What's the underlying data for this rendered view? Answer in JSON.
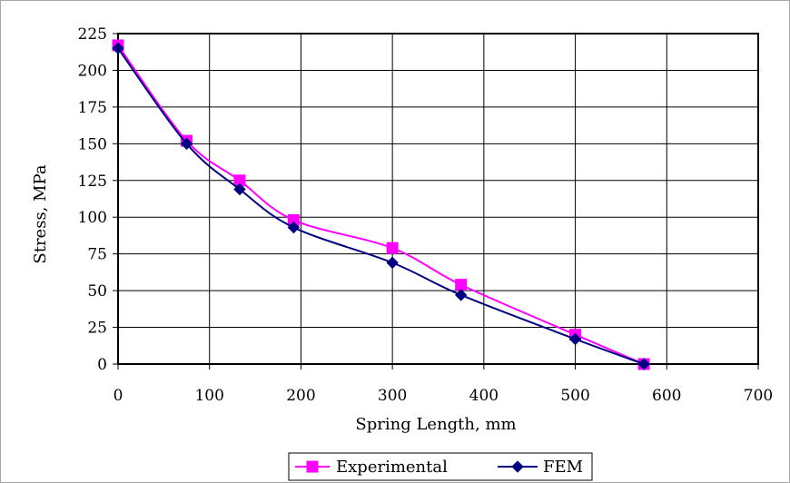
{
  "chart_data": {
    "type": "line",
    "title": "",
    "xlabel": "Spring Length, mm",
    "ylabel": "Stress, MPa",
    "xlim": [
      0,
      700
    ],
    "ylim": [
      0,
      225
    ],
    "xticks": [
      0,
      100,
      200,
      300,
      400,
      500,
      600,
      700
    ],
    "yticks": [
      0,
      25,
      50,
      75,
      100,
      125,
      150,
      175,
      200,
      225
    ],
    "grid": true,
    "legend_position": "bottom",
    "series": [
      {
        "name": "Experimental",
        "color": "#ff00ff",
        "marker": "square",
        "x": [
          0,
          75,
          133,
          192,
          300,
          375,
          500,
          575
        ],
        "y": [
          217,
          152,
          125,
          98,
          79,
          54,
          20,
          0
        ]
      },
      {
        "name": "FEM",
        "color": "#000080",
        "marker": "diamond",
        "x": [
          0,
          75,
          133,
          192,
          300,
          375,
          500,
          575
        ],
        "y": [
          215,
          150,
          119,
          93,
          69,
          47,
          17,
          0
        ]
      }
    ]
  }
}
